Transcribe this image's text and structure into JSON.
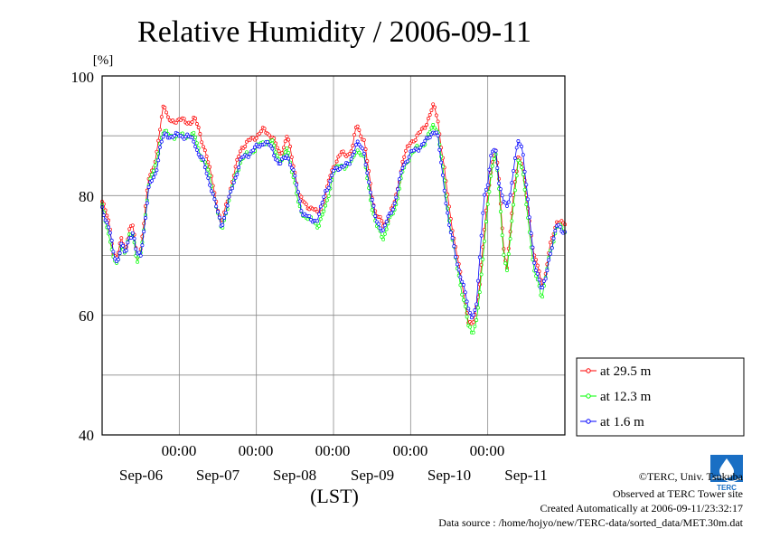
{
  "chart_data": {
    "type": "line",
    "title": "Relative Humidity / 2006-09-11",
    "ylabel": "[%]",
    "xlabel": "(LST)",
    "ylim": [
      40,
      100
    ],
    "y_ticks": [
      "40",
      "60",
      "80",
      "100"
    ],
    "x_range_days": [
      0,
      6
    ],
    "time_ticks": [
      "00:00",
      "00:00",
      "00:00",
      "00:00",
      "00:00"
    ],
    "date_labels": [
      "Sep-06",
      "Sep-07",
      "Sep-08",
      "Sep-09",
      "Sep-10",
      "Sep-11"
    ],
    "grid": true,
    "legend_position": "right-bottom",
    "series": [
      {
        "name": "at 29.5 m",
        "color": "#ff0000",
        "keypoints": [
          [
            0,
            79
          ],
          [
            0.1,
            75
          ],
          [
            0.15,
            70
          ],
          [
            0.2,
            69.5
          ],
          [
            0.25,
            73
          ],
          [
            0.3,
            71
          ],
          [
            0.35,
            74
          ],
          [
            0.4,
            75
          ],
          [
            0.45,
            70
          ],
          [
            0.5,
            71
          ],
          [
            0.55,
            76
          ],
          [
            0.6,
            83
          ],
          [
            0.7,
            86
          ],
          [
            0.75,
            91
          ],
          [
            0.8,
            96
          ],
          [
            0.85,
            93
          ],
          [
            0.9,
            92
          ],
          [
            1.0,
            93
          ],
          [
            1.1,
            92
          ],
          [
            1.2,
            93
          ],
          [
            1.25,
            91
          ],
          [
            1.3,
            89
          ],
          [
            1.35,
            87
          ],
          [
            1.4,
            84
          ],
          [
            1.5,
            78
          ],
          [
            1.55,
            75
          ],
          [
            1.6,
            78
          ],
          [
            1.7,
            83
          ],
          [
            1.8,
            88
          ],
          [
            1.9,
            89
          ],
          [
            2.0,
            90
          ],
          [
            2.1,
            91
          ],
          [
            2.2,
            90
          ],
          [
            2.3,
            87
          ],
          [
            2.35,
            88
          ],
          [
            2.4,
            90
          ],
          [
            2.5,
            84
          ],
          [
            2.55,
            80
          ],
          [
            2.6,
            79
          ],
          [
            2.7,
            78
          ],
          [
            2.8,
            77
          ],
          [
            2.9,
            80
          ],
          [
            2.95,
            83
          ],
          [
            3.0,
            85
          ],
          [
            3.1,
            87
          ],
          [
            3.2,
            87
          ],
          [
            3.25,
            88
          ],
          [
            3.3,
            92
          ],
          [
            3.4,
            89
          ],
          [
            3.5,
            80
          ],
          [
            3.55,
            77
          ],
          [
            3.6,
            76
          ],
          [
            3.65,
            75
          ],
          [
            3.7,
            76
          ],
          [
            3.8,
            79
          ],
          [
            3.9,
            86
          ],
          [
            4.0,
            89
          ],
          [
            4.1,
            90
          ],
          [
            4.2,
            92
          ],
          [
            4.3,
            95
          ],
          [
            4.35,
            93
          ],
          [
            4.4,
            88
          ],
          [
            4.5,
            78
          ],
          [
            4.6,
            70
          ],
          [
            4.7,
            63
          ],
          [
            4.75,
            59
          ],
          [
            4.8,
            58
          ],
          [
            4.85,
            61
          ],
          [
            4.9,
            66
          ],
          [
            4.95,
            73
          ],
          [
            5.0,
            80
          ],
          [
            5.05,
            85
          ],
          [
            5.1,
            88
          ],
          [
            5.15,
            82
          ],
          [
            5.2,
            72
          ],
          [
            5.25,
            68
          ],
          [
            5.3,
            75
          ],
          [
            5.35,
            82
          ],
          [
            5.4,
            87
          ],
          [
            5.45,
            85
          ],
          [
            5.5,
            80
          ],
          [
            5.55,
            75
          ],
          [
            5.6,
            70
          ],
          [
            5.65,
            68
          ],
          [
            5.7,
            65
          ],
          [
            5.75,
            67
          ],
          [
            5.8,
            71
          ],
          [
            5.9,
            76
          ],
          [
            6.0,
            75
          ]
        ]
      },
      {
        "name": "at 12.3 m",
        "color": "#00ff00",
        "keypoints": [
          [
            0,
            78
          ],
          [
            0.1,
            73
          ],
          [
            0.15,
            69
          ],
          [
            0.2,
            68.5
          ],
          [
            0.25,
            72
          ],
          [
            0.3,
            70
          ],
          [
            0.35,
            73
          ],
          [
            0.4,
            74
          ],
          [
            0.45,
            69
          ],
          [
            0.5,
            70
          ],
          [
            0.55,
            75
          ],
          [
            0.6,
            82
          ],
          [
            0.7,
            85
          ],
          [
            0.75,
            89
          ],
          [
            0.8,
            91
          ],
          [
            0.85,
            90
          ],
          [
            0.9,
            90
          ],
          [
            1.0,
            90
          ],
          [
            1.1,
            90
          ],
          [
            1.2,
            90
          ],
          [
            1.25,
            88
          ],
          [
            1.3,
            86
          ],
          [
            1.35,
            85
          ],
          [
            1.4,
            83
          ],
          [
            1.5,
            77
          ],
          [
            1.55,
            74
          ],
          [
            1.6,
            77
          ],
          [
            1.7,
            82
          ],
          [
            1.8,
            86
          ],
          [
            1.9,
            87
          ],
          [
            2.0,
            88
          ],
          [
            2.1,
            89
          ],
          [
            2.2,
            89
          ],
          [
            2.3,
            86
          ],
          [
            2.35,
            86
          ],
          [
            2.4,
            88
          ],
          [
            2.5,
            82
          ],
          [
            2.55,
            78
          ],
          [
            2.6,
            77
          ],
          [
            2.7,
            76
          ],
          [
            2.8,
            75
          ],
          [
            2.9,
            78
          ],
          [
            2.95,
            81
          ],
          [
            3.0,
            84
          ],
          [
            3.1,
            85
          ],
          [
            3.2,
            85
          ],
          [
            3.25,
            86
          ],
          [
            3.3,
            88
          ],
          [
            3.4,
            86
          ],
          [
            3.5,
            78
          ],
          [
            3.55,
            75
          ],
          [
            3.6,
            74
          ],
          [
            3.65,
            73
          ],
          [
            3.7,
            75
          ],
          [
            3.8,
            78
          ],
          [
            3.9,
            84
          ],
          [
            4.0,
            87
          ],
          [
            4.1,
            88
          ],
          [
            4.2,
            89
          ],
          [
            4.3,
            92
          ],
          [
            4.35,
            91
          ],
          [
            4.4,
            86
          ],
          [
            4.5,
            76
          ],
          [
            4.6,
            68
          ],
          [
            4.7,
            62
          ],
          [
            4.75,
            58
          ],
          [
            4.8,
            57
          ],
          [
            4.85,
            59
          ],
          [
            4.9,
            64
          ],
          [
            4.95,
            71
          ],
          [
            5.0,
            79
          ],
          [
            5.05,
            84
          ],
          [
            5.1,
            87
          ],
          [
            5.15,
            81
          ],
          [
            5.2,
            71
          ],
          [
            5.25,
            67
          ],
          [
            5.3,
            74
          ],
          [
            5.35,
            81
          ],
          [
            5.4,
            86
          ],
          [
            5.45,
            84
          ],
          [
            5.5,
            79
          ],
          [
            5.55,
            73
          ],
          [
            5.6,
            67
          ],
          [
            5.65,
            66
          ],
          [
            5.7,
            63
          ],
          [
            5.75,
            66
          ],
          [
            5.8,
            70
          ],
          [
            5.9,
            75
          ],
          [
            6.0,
            74
          ]
        ]
      },
      {
        "name": "at 1.6 m",
        "color": "#0000ff",
        "keypoints": [
          [
            0,
            78
          ],
          [
            0.1,
            74
          ],
          [
            0.15,
            70
          ],
          [
            0.2,
            69
          ],
          [
            0.25,
            72
          ],
          [
            0.3,
            70
          ],
          [
            0.35,
            73
          ],
          [
            0.4,
            74
          ],
          [
            0.45,
            70
          ],
          [
            0.5,
            70
          ],
          [
            0.55,
            75
          ],
          [
            0.6,
            81
          ],
          [
            0.7,
            84
          ],
          [
            0.75,
            88
          ],
          [
            0.8,
            90
          ],
          [
            0.85,
            90
          ],
          [
            0.9,
            90
          ],
          [
            1.0,
            90
          ],
          [
            1.1,
            90
          ],
          [
            1.2,
            89
          ],
          [
            1.25,
            87
          ],
          [
            1.3,
            86
          ],
          [
            1.35,
            84
          ],
          [
            1.4,
            82
          ],
          [
            1.5,
            77
          ],
          [
            1.55,
            75
          ],
          [
            1.6,
            77
          ],
          [
            1.7,
            82
          ],
          [
            1.8,
            86
          ],
          [
            1.9,
            87
          ],
          [
            2.0,
            88
          ],
          [
            2.1,
            89
          ],
          [
            2.2,
            88
          ],
          [
            2.3,
            85
          ],
          [
            2.35,
            86
          ],
          [
            2.4,
            87
          ],
          [
            2.5,
            83
          ],
          [
            2.55,
            80
          ],
          [
            2.6,
            77
          ],
          [
            2.7,
            76
          ],
          [
            2.8,
            76
          ],
          [
            2.9,
            81
          ],
          [
            2.95,
            82
          ],
          [
            3.0,
            84
          ],
          [
            3.1,
            85
          ],
          [
            3.2,
            85
          ],
          [
            3.25,
            87
          ],
          [
            3.3,
            89
          ],
          [
            3.4,
            87
          ],
          [
            3.5,
            79
          ],
          [
            3.55,
            76
          ],
          [
            3.6,
            75
          ],
          [
            3.65,
            74
          ],
          [
            3.7,
            76
          ],
          [
            3.8,
            79
          ],
          [
            3.9,
            85
          ],
          [
            4.0,
            87
          ],
          [
            4.1,
            88
          ],
          [
            4.2,
            89
          ],
          [
            4.3,
            91
          ],
          [
            4.35,
            90
          ],
          [
            4.4,
            85
          ],
          [
            4.5,
            75
          ],
          [
            4.6,
            69
          ],
          [
            4.7,
            64
          ],
          [
            4.75,
            61
          ],
          [
            4.8,
            60
          ],
          [
            4.85,
            61
          ],
          [
            4.9,
            70
          ],
          [
            4.95,
            80
          ],
          [
            5.0,
            82
          ],
          [
            5.05,
            87
          ],
          [
            5.1,
            88
          ],
          [
            5.15,
            82
          ],
          [
            5.2,
            79
          ],
          [
            5.25,
            78
          ],
          [
            5.3,
            81
          ],
          [
            5.35,
            86
          ],
          [
            5.4,
            89
          ],
          [
            5.45,
            88
          ],
          [
            5.5,
            82
          ],
          [
            5.55,
            75
          ],
          [
            5.6,
            69
          ],
          [
            5.65,
            67
          ],
          [
            5.7,
            64
          ],
          [
            5.75,
            66
          ],
          [
            5.8,
            70
          ],
          [
            5.9,
            75
          ],
          [
            6.0,
            74
          ]
        ]
      }
    ]
  },
  "credits": {
    "copyright": "©TERC, Univ. Tsukuba",
    "observed": "Observed at TERC Tower site",
    "created": "Created Automatically at 2006-09-11/23:32:17",
    "source": "Data source : /home/hojyo/new/TERC-data/sorted_data/MET.30m.dat"
  },
  "logo": {
    "text": "TERC",
    "color": "#1a6fc4"
  }
}
